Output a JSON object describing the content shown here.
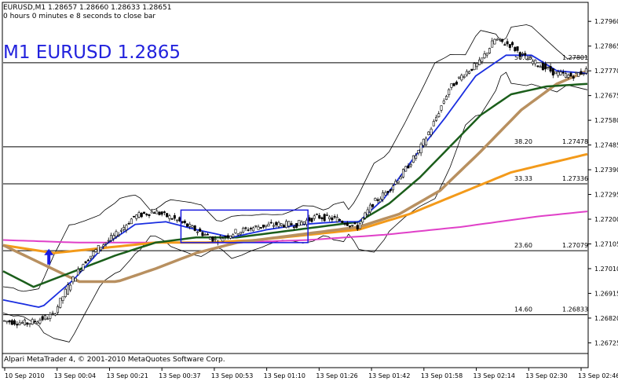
{
  "header": {
    "symbol_line": "EURUSD,M1  1.28657 1.28660 1.28633 1.28651",
    "timer_line": "0 hours 0 minutes e 8 seconds to close bar"
  },
  "overlay_label": "M1 EURUSD 1.2865",
  "footer": {
    "copyright": "Alpari MetaTrader 4, © 2001-2010 MetaQuotes Software Corp."
  },
  "colors": {
    "candle": "#000000",
    "bb": "#000000",
    "ma_fast": "#1a2ee0",
    "ma_mid": "#1b5e1b",
    "ma_tan": "#b89060",
    "ma_orange": "#f39a1a",
    "ma_magenta": "#e040c8",
    "rect": "#1a1ae0",
    "arrow": "#1a1ae0"
  },
  "chart_data": {
    "type": "candlestick",
    "symbol": "EURUSD",
    "timeframe": "M1",
    "ylim": [
      1.2669,
      1.2803
    ],
    "y_ticks": [
      "1.27960",
      "1.27865",
      "1.27770",
      "1.27675",
      "1.27580",
      "1.27485",
      "1.27390",
      "1.27295",
      "1.27200",
      "1.27105",
      "1.27010",
      "1.26915",
      "1.26820",
      "1.26725"
    ],
    "x_ticks": [
      "10 Sep 2010",
      "13 Sep 00:04",
      "13 Sep 00:21",
      "13 Sep 00:37",
      "13 Sep 00:53",
      "13 Sep 01:10",
      "13 Sep 01:26",
      "13 Sep 01:42",
      "13 Sep 01:58",
      "13 Sep 02:14",
      "13 Sep 02:30",
      "13 Sep 02:46"
    ],
    "fibo_levels": [
      {
        "pct": "50.00",
        "price": "1.27801"
      },
      {
        "pct": "38.20",
        "price": "1.27478"
      },
      {
        "pct": "33.33",
        "price": "1.27336"
      },
      {
        "pct": "23.60",
        "price": "1.27079"
      },
      {
        "pct": "14.60",
        "price": "1.26833"
      }
    ],
    "price_path": [
      [
        0,
        1.2681
      ],
      [
        10,
        1.268
      ],
      [
        20,
        1.2683
      ],
      [
        26,
        1.2694
      ],
      [
        32,
        1.2703
      ],
      [
        38,
        1.2709
      ],
      [
        45,
        1.2714
      ],
      [
        52,
        1.2721
      ],
      [
        60,
        1.2723
      ],
      [
        68,
        1.272
      ],
      [
        76,
        1.2716
      ],
      [
        84,
        1.2712
      ],
      [
        92,
        1.2715
      ],
      [
        100,
        1.2717
      ],
      [
        108,
        1.2718
      ],
      [
        116,
        1.2718
      ],
      [
        124,
        1.2721
      ],
      [
        132,
        1.272
      ],
      [
        140,
        1.2717
      ],
      [
        146,
        1.2726
      ],
      [
        152,
        1.2731
      ],
      [
        158,
        1.2738
      ],
      [
        164,
        1.2746
      ],
      [
        170,
        1.2757
      ],
      [
        176,
        1.277
      ],
      [
        182,
        1.2776
      ],
      [
        188,
        1.278
      ],
      [
        194,
        1.2789
      ],
      [
        200,
        1.2787
      ],
      [
        206,
        1.2782
      ],
      [
        212,
        1.2779
      ],
      [
        218,
        1.2776
      ],
      [
        224,
        1.2775
      ],
      [
        230,
        1.2777
      ]
    ],
    "ma_fast": [
      [
        0,
        1.2689
      ],
      [
        15,
        1.2686
      ],
      [
        28,
        1.2697
      ],
      [
        40,
        1.271
      ],
      [
        52,
        1.2718
      ],
      [
        64,
        1.2719
      ],
      [
        76,
        1.2716
      ],
      [
        90,
        1.2713
      ],
      [
        104,
        1.2716
      ],
      [
        118,
        1.2718
      ],
      [
        132,
        1.2719
      ],
      [
        140,
        1.2719
      ],
      [
        150,
        1.2728
      ],
      [
        162,
        1.2744
      ],
      [
        174,
        1.2759
      ],
      [
        186,
        1.2775
      ],
      [
        198,
        1.2783
      ],
      [
        208,
        1.2783
      ],
      [
        218,
        1.2777
      ],
      [
        230,
        1.2776
      ]
    ],
    "ma_mid": [
      [
        0,
        1.27
      ],
      [
        12,
        1.2694
      ],
      [
        28,
        1.27
      ],
      [
        44,
        1.2706
      ],
      [
        60,
        1.2711
      ],
      [
        76,
        1.2713
      ],
      [
        92,
        1.2713
      ],
      [
        108,
        1.2715
      ],
      [
        124,
        1.2717
      ],
      [
        140,
        1.2719
      ],
      [
        152,
        1.2726
      ],
      [
        164,
        1.2736
      ],
      [
        176,
        1.2748
      ],
      [
        188,
        1.276
      ],
      [
        200,
        1.2768
      ],
      [
        214,
        1.2771
      ],
      [
        230,
        1.2772
      ]
    ],
    "ma_tan": [
      [
        0,
        1.271
      ],
      [
        15,
        1.2703
      ],
      [
        30,
        1.2696
      ],
      [
        45,
        1.2696
      ],
      [
        60,
        1.2701
      ],
      [
        76,
        1.2707
      ],
      [
        92,
        1.2711
      ],
      [
        108,
        1.2713
      ],
      [
        124,
        1.2715
      ],
      [
        140,
        1.2717
      ],
      [
        156,
        1.2722
      ],
      [
        172,
        1.2731
      ],
      [
        188,
        1.2746
      ],
      [
        204,
        1.2762
      ],
      [
        218,
        1.2772
      ],
      [
        230,
        1.2777
      ]
    ],
    "ma_orange": [
      [
        0,
        1.271
      ],
      [
        20,
        1.2707
      ],
      [
        40,
        1.2709
      ],
      [
        60,
        1.2711
      ],
      [
        80,
        1.2711
      ],
      [
        100,
        1.2712
      ],
      [
        120,
        1.2714
      ],
      [
        140,
        1.2716
      ],
      [
        160,
        1.2722
      ],
      [
        180,
        1.273
      ],
      [
        200,
        1.2738
      ],
      [
        230,
        1.2745
      ]
    ],
    "ma_magenta": [
      [
        0,
        1.2712
      ],
      [
        30,
        1.2711
      ],
      [
        60,
        1.2711
      ],
      [
        90,
        1.2711
      ],
      [
        120,
        1.2712
      ],
      [
        150,
        1.2714
      ],
      [
        180,
        1.2717
      ],
      [
        210,
        1.2721
      ],
      [
        230,
        1.2723
      ]
    ],
    "rect_box": {
      "x": [
        70,
        120
      ],
      "y": [
        1.2711,
        1.27235
      ]
    },
    "arrow_at": [
      18,
      1.2705
    ]
  }
}
